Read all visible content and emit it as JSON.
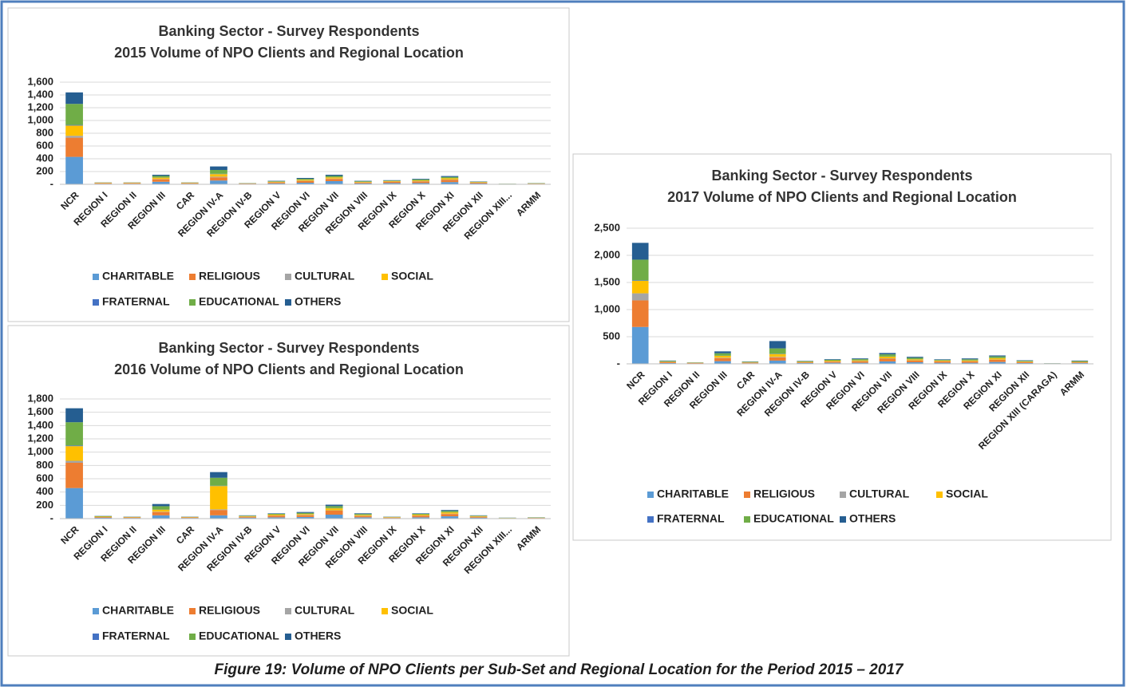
{
  "caption": "Figure 19: Volume of NPO Clients per Sub-Set and Regional Location for the Period 2015 – 2017",
  "chart_data": [
    {
      "type": "stacked_bar",
      "title": "Banking Sector - Survey Respondents",
      "subtitle": "2015 Volume of NPO Clients and Regional Location",
      "categories": [
        "NCR",
        "REGION I",
        "REGION II",
        "REGION III",
        "CAR",
        "REGION IV-A",
        "REGION IV-B",
        "REGION V",
        "REGION VI",
        "REGION VII",
        "REGION VIII",
        "REGION IX",
        "REGION X",
        "REGION XI",
        "REGION XII",
        "REGION XIII...",
        "ARMM"
      ],
      "ylim": [
        0,
        1600
      ],
      "yticks": [
        {
          "value": 0,
          "label": "-"
        },
        200,
        400,
        600,
        800,
        {
          "value": 1000,
          "label": "1,000"
        },
        {
          "value": 1200,
          "label": "1,200"
        },
        {
          "value": 1400,
          "label": "1,400"
        },
        {
          "value": 1600,
          "label": "1,600"
        }
      ],
      "grid": true,
      "series": [
        {
          "name": "CHARITABLE",
          "color": "#5b9bd5",
          "values": [
            430,
            10,
            10,
            40,
            10,
            60,
            6,
            15,
            25,
            50,
            15,
            20,
            20,
            35,
            12,
            3,
            5
          ]
        },
        {
          "name": "RELIGIOUS",
          "color": "#ed7d31",
          "values": [
            300,
            8,
            8,
            40,
            8,
            50,
            5,
            15,
            25,
            35,
            12,
            20,
            25,
            35,
            12,
            2,
            5
          ]
        },
        {
          "name": "CULTURAL",
          "color": "#a5a5a5",
          "values": [
            30,
            2,
            2,
            5,
            1,
            10,
            1,
            2,
            5,
            5,
            2,
            2,
            3,
            5,
            2,
            1,
            1
          ]
        },
        {
          "name": "SOCIAL",
          "color": "#ffc000",
          "values": [
            160,
            5,
            5,
            20,
            5,
            40,
            3,
            8,
            15,
            20,
            8,
            8,
            12,
            20,
            7,
            1,
            3
          ]
        },
        {
          "name": "FRATERNAL",
          "color": "#4472c4",
          "values": [
            10,
            0,
            0,
            2,
            0,
            5,
            0,
            1,
            2,
            2,
            1,
            1,
            1,
            2,
            1,
            0,
            0
          ]
        },
        {
          "name": "EDUCATIONAL",
          "color": "#70ad47",
          "values": [
            330,
            3,
            3,
            25,
            4,
            60,
            3,
            8,
            15,
            20,
            10,
            8,
            14,
            18,
            6,
            2,
            4
          ]
        },
        {
          "name": "OTHERS",
          "color": "#255e91",
          "values": [
            180,
            2,
            2,
            18,
            2,
            55,
            2,
            6,
            13,
            18,
            7,
            6,
            10,
            15,
            5,
            1,
            2
          ]
        }
      ]
    },
    {
      "type": "stacked_bar",
      "title": "Banking Sector - Survey Respondents",
      "subtitle": "2016 Volume of NPO Clients and Regional Location",
      "categories": [
        "NCR",
        "REGION I",
        "REGION II",
        "REGION III",
        "CAR",
        "REGION IV-A",
        "REGION IV-B",
        "REGION V",
        "REGION VI",
        "REGION VII",
        "REGION VIII",
        "REGION IX",
        "REGION X",
        "REGION XI",
        "REGION XII",
        "REGION XIII...",
        "ARMM"
      ],
      "ylim": [
        0,
        1800
      ],
      "yticks": [
        {
          "value": 0,
          "label": "-"
        },
        200,
        400,
        600,
        800,
        {
          "value": 1000,
          "label": "1,000"
        },
        {
          "value": 1200,
          "label": "1,200"
        },
        {
          "value": 1400,
          "label": "1,400"
        },
        {
          "value": 1600,
          "label": "1,600"
        },
        {
          "value": 1800,
          "label": "1,800"
        }
      ],
      "grid": true,
      "series": [
        {
          "name": "CHARITABLE",
          "color": "#5b9bd5",
          "values": [
            460,
            12,
            10,
            50,
            10,
            50,
            15,
            20,
            25,
            60,
            20,
            8,
            20,
            35,
            15,
            4,
            5
          ]
        },
        {
          "name": "RELIGIOUS",
          "color": "#ed7d31",
          "values": [
            380,
            10,
            8,
            50,
            8,
            80,
            12,
            25,
            25,
            60,
            20,
            8,
            25,
            35,
            12,
            3,
            5
          ]
        },
        {
          "name": "CULTURAL",
          "color": "#a5a5a5",
          "values": [
            30,
            2,
            1,
            5,
            1,
            10,
            2,
            3,
            5,
            5,
            3,
            1,
            3,
            5,
            2,
            1,
            1
          ]
        },
        {
          "name": "SOCIAL",
          "color": "#ffc000",
          "values": [
            220,
            6,
            4,
            30,
            4,
            350,
            8,
            12,
            15,
            30,
            12,
            5,
            12,
            20,
            8,
            2,
            3
          ]
        },
        {
          "name": "FRATERNAL",
          "color": "#4472c4",
          "values": [
            10,
            0,
            0,
            2,
            0,
            5,
            1,
            1,
            2,
            3,
            1,
            0,
            1,
            2,
            1,
            0,
            0
          ]
        },
        {
          "name": "EDUCATIONAL",
          "color": "#70ad47",
          "values": [
            350,
            6,
            4,
            50,
            4,
            120,
            7,
            12,
            15,
            30,
            14,
            5,
            12,
            20,
            7,
            3,
            4
          ]
        },
        {
          "name": "OTHERS",
          "color": "#255e91",
          "values": [
            210,
            4,
            3,
            33,
            3,
            85,
            5,
            7,
            13,
            22,
            10,
            3,
            7,
            13,
            5,
            2,
            2
          ]
        }
      ]
    },
    {
      "type": "stacked_bar",
      "title": "Banking Sector - Survey Respondents",
      "subtitle": "2017 Volume of NPO Clients and Regional Location",
      "categories": [
        "NCR",
        "REGION I",
        "REGION II",
        "REGION III",
        "CAR",
        "REGION IV-A",
        "REGION IV-B",
        "REGION V",
        "REGION VI",
        "REGION VII",
        "REGION VIII",
        "REGION IX",
        "REGION X",
        "REGION XI",
        "REGION XII",
        "REGION XIII (CARAGA)",
        "ARMM"
      ],
      "ylim": [
        0,
        2500
      ],
      "yticks": [
        {
          "value": 0,
          "label": "-"
        },
        500,
        {
          "value": 1000,
          "label": "1,000"
        },
        {
          "value": 1500,
          "label": "1,500"
        },
        {
          "value": 2000,
          "label": "2,000"
        },
        {
          "value": 2500,
          "label": "2,500"
        }
      ],
      "grid": true,
      "series": [
        {
          "name": "CHARITABLE",
          "color": "#5b9bd5",
          "values": [
            680,
            15,
            8,
            50,
            10,
            60,
            15,
            20,
            20,
            45,
            30,
            20,
            20,
            35,
            15,
            3,
            15
          ]
        },
        {
          "name": "RELIGIOUS",
          "color": "#ed7d31",
          "values": [
            490,
            15,
            7,
            55,
            10,
            60,
            12,
            20,
            25,
            50,
            30,
            25,
            25,
            40,
            15,
            2,
            12
          ]
        },
        {
          "name": "CULTURAL",
          "color": "#a5a5a5",
          "values": [
            130,
            3,
            1,
            8,
            2,
            10,
            2,
            3,
            5,
            7,
            5,
            3,
            3,
            5,
            3,
            1,
            2
          ]
        },
        {
          "name": "SOCIAL",
          "color": "#ffc000",
          "values": [
            230,
            8,
            4,
            35,
            6,
            50,
            8,
            15,
            15,
            30,
            20,
            12,
            15,
            25,
            10,
            2,
            8
          ]
        },
        {
          "name": "FRATERNAL",
          "color": "#4472c4",
          "values": [
            10,
            1,
            0,
            2,
            1,
            5,
            1,
            1,
            2,
            3,
            2,
            1,
            1,
            2,
            1,
            0,
            1
          ]
        },
        {
          "name": "EDUCATIONAL",
          "color": "#70ad47",
          "values": [
            380,
            10,
            5,
            45,
            8,
            100,
            10,
            15,
            20,
            40,
            25,
            12,
            20,
            30,
            12,
            2,
            12
          ]
        },
        {
          "name": "OTHERS",
          "color": "#255e91",
          "values": [
            310,
            8,
            3,
            35,
            5,
            135,
            7,
            11,
            13,
            25,
            18,
            10,
            16,
            18,
            9,
            2,
            10
          ]
        }
      ]
    }
  ]
}
